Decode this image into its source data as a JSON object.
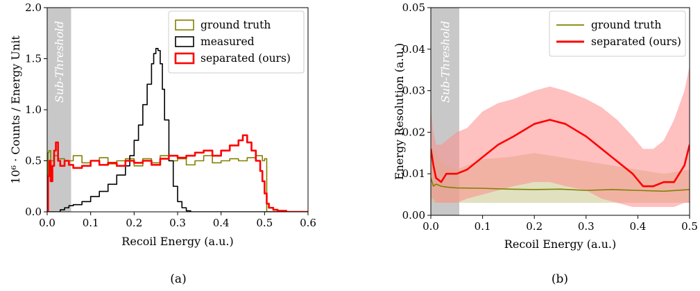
{
  "chart_data": [
    {
      "type": "line",
      "panel_caption": "(a)",
      "xlabel": "Recoil Energy (a.u.)",
      "ylabel": "10⁶ · Counts / Energy Unit",
      "xlim": [
        0.0,
        0.6
      ],
      "ylim": [
        0.0,
        2.0
      ],
      "xticks": [
        "0.0",
        "0.1",
        "0.2",
        "0.3",
        "0.4",
        "0.5",
        "0.6"
      ],
      "yticks": [
        "0.0",
        "0.5",
        "1.0",
        "1.5",
        "2.0"
      ],
      "shaded_region": {
        "x": [
          0.0,
          0.055
        ],
        "label": "Sub-Threshold",
        "color": "#c8c8c8"
      },
      "legend_position": "top-right",
      "series": [
        {
          "name": "ground truth",
          "color": "#808000",
          "style": "step",
          "x": [
            0.0,
            0.002,
            0.004,
            0.008,
            0.015,
            0.025,
            0.04,
            0.06,
            0.08,
            0.1,
            0.12,
            0.14,
            0.16,
            0.18,
            0.2,
            0.22,
            0.24,
            0.26,
            0.28,
            0.3,
            0.32,
            0.34,
            0.36,
            0.38,
            0.4,
            0.42,
            0.44,
            0.46,
            0.48,
            0.495,
            0.5,
            0.505,
            0.6
          ],
          "y": [
            0.0,
            0.58,
            0.6,
            0.5,
            0.55,
            0.52,
            0.5,
            0.55,
            0.48,
            0.5,
            0.53,
            0.47,
            0.5,
            0.52,
            0.45,
            0.52,
            0.48,
            0.55,
            0.5,
            0.52,
            0.46,
            0.5,
            0.55,
            0.48,
            0.5,
            0.52,
            0.5,
            0.53,
            0.55,
            0.5,
            0.52,
            0.0,
            0.0
          ]
        },
        {
          "name": "measured",
          "color": "#000000",
          "style": "step",
          "x": [
            0.0,
            0.02,
            0.03,
            0.04,
            0.05,
            0.06,
            0.08,
            0.1,
            0.12,
            0.14,
            0.16,
            0.18,
            0.19,
            0.2,
            0.21,
            0.22,
            0.23,
            0.24,
            0.245,
            0.25,
            0.255,
            0.26,
            0.265,
            0.27,
            0.28,
            0.29,
            0.3,
            0.31,
            0.32,
            0.33,
            0.6
          ],
          "y": [
            0.0,
            0.0,
            0.02,
            0.04,
            0.06,
            0.07,
            0.1,
            0.15,
            0.2,
            0.27,
            0.36,
            0.45,
            0.55,
            0.7,
            0.85,
            1.05,
            1.25,
            1.45,
            1.55,
            1.6,
            1.58,
            1.45,
            1.2,
            0.9,
            0.5,
            0.25,
            0.1,
            0.04,
            0.01,
            0.0,
            0.0
          ]
        },
        {
          "name": "separated (ours)",
          "color": "#ff0000",
          "style": "step",
          "x": [
            0.0,
            0.002,
            0.005,
            0.008,
            0.012,
            0.016,
            0.02,
            0.025,
            0.03,
            0.04,
            0.05,
            0.06,
            0.08,
            0.1,
            0.12,
            0.14,
            0.16,
            0.18,
            0.2,
            0.22,
            0.24,
            0.26,
            0.28,
            0.3,
            0.32,
            0.34,
            0.36,
            0.38,
            0.4,
            0.42,
            0.44,
            0.45,
            0.46,
            0.47,
            0.48,
            0.49,
            0.495,
            0.5,
            0.505,
            0.51,
            0.52,
            0.53,
            0.55,
            0.6
          ],
          "y": [
            0.0,
            0.35,
            0.5,
            0.3,
            0.45,
            0.6,
            0.68,
            0.5,
            0.45,
            0.5,
            0.46,
            0.43,
            0.45,
            0.5,
            0.46,
            0.48,
            0.45,
            0.5,
            0.48,
            0.5,
            0.46,
            0.52,
            0.55,
            0.53,
            0.55,
            0.58,
            0.6,
            0.55,
            0.6,
            0.65,
            0.7,
            0.75,
            0.68,
            0.6,
            0.5,
            0.4,
            0.3,
            0.18,
            0.08,
            0.04,
            0.02,
            0.01,
            0.0,
            0.0
          ]
        }
      ]
    },
    {
      "type": "line",
      "panel_caption": "(b)",
      "xlabel": "Recoil Energy (a.u.)",
      "ylabel": "Energy Resolution (a.u.)",
      "xlim": [
        0.0,
        0.5
      ],
      "ylim": [
        0.0,
        0.05
      ],
      "xticks": [
        "0.0",
        "0.1",
        "0.2",
        "0.3",
        "0.4",
        "0.5"
      ],
      "yticks": [
        "0.00",
        "0.01",
        "0.02",
        "0.03",
        "0.04",
        "0.05"
      ],
      "shaded_region": {
        "x": [
          0.0,
          0.055
        ],
        "label": "Sub-Threshold",
        "color": "#c8c8c8"
      },
      "legend_position": "top-right",
      "series": [
        {
          "name": "ground truth",
          "color": "#808000",
          "band_color": "#c8c88c",
          "x": [
            0.0,
            0.005,
            0.01,
            0.02,
            0.03,
            0.05,
            0.1,
            0.15,
            0.2,
            0.25,
            0.3,
            0.35,
            0.4,
            0.45,
            0.5
          ],
          "y": [
            0.009,
            0.007,
            0.0075,
            0.007,
            0.0068,
            0.0066,
            0.0065,
            0.0063,
            0.0062,
            0.0063,
            0.006,
            0.0062,
            0.006,
            0.0058,
            0.0062
          ],
          "band_low": [
            0.003,
            0.003,
            0.003,
            0.003,
            0.003,
            0.003,
            0.003,
            0.003,
            0.003,
            0.003,
            0.003,
            0.003,
            0.003,
            0.003,
            0.003
          ],
          "band_high": [
            0.018,
            0.016,
            0.015,
            0.013,
            0.012,
            0.011,
            0.0135,
            0.014,
            0.015,
            0.014,
            0.013,
            0.012,
            0.011,
            0.01,
            0.011
          ]
        },
        {
          "name": "separated (ours)",
          "color": "#ff0000",
          "band_color": "#ff8c8c",
          "x": [
            0.0,
            0.005,
            0.01,
            0.02,
            0.03,
            0.05,
            0.07,
            0.1,
            0.13,
            0.16,
            0.2,
            0.23,
            0.26,
            0.3,
            0.33,
            0.36,
            0.39,
            0.41,
            0.43,
            0.45,
            0.47,
            0.49,
            0.5
          ],
          "y": [
            0.016,
            0.012,
            0.009,
            0.008,
            0.01,
            0.01,
            0.011,
            0.014,
            0.017,
            0.019,
            0.022,
            0.023,
            0.022,
            0.019,
            0.016,
            0.013,
            0.01,
            0.007,
            0.007,
            0.008,
            0.008,
            0.012,
            0.017
          ],
          "band_low": [
            0.004,
            0.004,
            0.003,
            0.003,
            0.003,
            0.003,
            0.004,
            0.005,
            0.006,
            0.007,
            0.008,
            0.008,
            0.007,
            0.006,
            0.004,
            0.003,
            0.002,
            0.002,
            0.002,
            0.002,
            0.002,
            0.003,
            0.003
          ],
          "band_high": [
            0.026,
            0.02,
            0.017,
            0.017,
            0.018,
            0.02,
            0.021,
            0.025,
            0.027,
            0.028,
            0.03,
            0.031,
            0.03,
            0.028,
            0.026,
            0.023,
            0.019,
            0.016,
            0.016,
            0.018,
            0.023,
            0.03,
            0.036
          ]
        }
      ]
    }
  ]
}
